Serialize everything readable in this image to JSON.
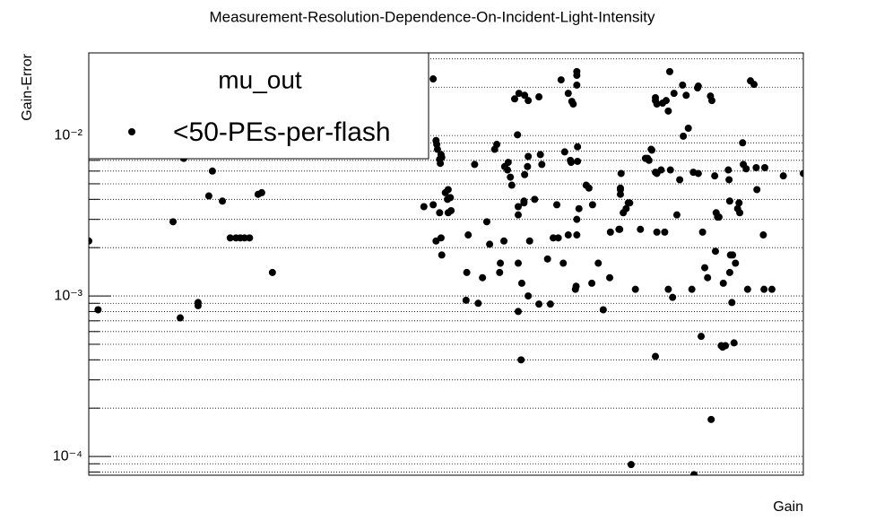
{
  "chart_data": {
    "type": "scatter",
    "title": "Measurement-Resolution-Dependence-On-Incident-Light-Intensity",
    "xlabel": "Gain",
    "ylabel": "Gain-Error",
    "legend_title": "mu_out",
    "legend": "upper left",
    "ylog": true,
    "grid": true,
    "xlim": [
      0,
      100
    ],
    "ylim": [
      7.64e-05,
      0.0327
    ],
    "yticks": [
      {
        "value": 0.0001,
        "label": "10⁻⁴"
      },
      {
        "value": 0.001,
        "label": "10⁻³"
      },
      {
        "value": 0.01,
        "label": "10⁻²"
      }
    ],
    "yminorticks": [
      8e-05,
      9e-05,
      0.0002,
      0.0003,
      0.0004,
      0.0005,
      0.0006,
      0.0007,
      0.0008,
      0.0009,
      0.002,
      0.003,
      0.004,
      0.005,
      0.006,
      0.007,
      0.008,
      0.009,
      0.02,
      0.03
    ],
    "series": [
      {
        "name": "<50-PEs-per-flash",
        "color": "#000000",
        "x": [
          0.0,
          1.3,
          11.8,
          12.8,
          13.3,
          15.3,
          15.3,
          16.8,
          17.3,
          18.7,
          19.8,
          20.6,
          21.2,
          21.8,
          22.5,
          23.7,
          24.2,
          25.7,
          48.2,
          48.6,
          48.7,
          48.8,
          49.1,
          49.2,
          49.3,
          49.4,
          46.9,
          48.2,
          48.6,
          49.1,
          49.3,
          49.4,
          49.9,
          50.3,
          50.3,
          50.7,
          50.2,
          50.6,
          52.8,
          53.1,
          52.9,
          54.0,
          54.5,
          55.1,
          55.7,
          56.1,
          56.8,
          57.1,
          57.5,
          57.6,
          58.1,
          58.2,
          58.6,
          58.7,
          59.0,
          59.2,
          59.6,
          60.0,
          60.1,
          60.1,
          60.1,
          60.1,
          60.5,
          60.2,
          61.0,
          61.5,
          60.6,
          60.9,
          60.9,
          61.0,
          61.5,
          61.4,
          61.5,
          61.7,
          62.4,
          63.0,
          63.4,
          63.2,
          63.0,
          64.2,
          64.6,
          65.0,
          65.5,
          65.7,
          66.1,
          66.4,
          66.6,
          67.1,
          67.4,
          67.5,
          67.1,
          67.6,
          67.8,
          68.1,
          68.2,
          68.3,
          68.3,
          68.3,
          68.4,
          68.4,
          68.3,
          68.3,
          68.6,
          69.6,
          70.0,
          70.5,
          70.4,
          71.3,
          72.0,
          72.9,
          73.0,
          74.2,
          74.4,
          74.4,
          74.4,
          74.5,
          74.3,
          74.8,
          75.2,
          75.5,
          75.7,
          75.9,
          76.5,
          77.2,
          77.9,
          78.2,
          78.4,
          78.7,
          78.8,
          79.3,
          79.5,
          79.3,
          79.5,
          79.3,
          79.5,
          80.1,
          79.3,
          80.3,
          80.6,
          80.8,
          81.1,
          81.1,
          81.3,
          81.4,
          81.7,
          81.9,
          82.3,
          82.7,
          83.1,
          83.2,
          83.6,
          83.9,
          84.4,
          84.6,
          84.7,
          85.2,
          85.3,
          85.3,
          85.7,
          85.9,
          86.2,
          86.6,
          87.0,
          87.1,
          87.2,
          87.6,
          87.7,
          87.8,
          88.0,
          88.2,
          88.5,
          88.7,
          88.8,
          89.1,
          89.6,
          89.5,
          89.7,
          89.7,
          89.8,
          90.0,
          90.1,
          90.3,
          90.5,
          90.8,
          91.0,
          91.1,
          91.5,
          91.6,
          92.0,
          92.2,
          92.6,
          93.1,
          93.4,
          93.5,
          94.4,
          94.5,
          94.6,
          95.6,
          97.2,
          100.0
        ],
        "values": [
          0.0022,
          0.00082,
          0.0029,
          0.00073,
          0.0072,
          0.00091,
          0.00087,
          0.0042,
          0.006,
          0.0039,
          0.0023,
          0.0023,
          0.0023,
          0.0023,
          0.0023,
          0.0043,
          0.0044,
          0.0014,
          0.0225,
          0.0093,
          0.0088,
          0.0082,
          0.0071,
          0.0067,
          0.0076,
          0.0073,
          0.0036,
          0.0037,
          0.0022,
          0.0033,
          0.0023,
          0.0018,
          0.0044,
          0.0046,
          0.0033,
          0.0034,
          0.004,
          0.0041,
          0.00094,
          0.0024,
          0.0014,
          0.0066,
          0.0009,
          0.0013,
          0.0029,
          0.0021,
          0.0082,
          0.0088,
          0.0014,
          0.0016,
          0.0022,
          0.0064,
          0.0061,
          0.0068,
          0.0055,
          0.0049,
          0.0169,
          0.0101,
          0.0032,
          0.0036,
          0.0008,
          0.0016,
          0.0004,
          0.0183,
          0.0178,
          0.0165,
          0.0012,
          0.0039,
          0.0038,
          0.0057,
          0.001,
          0.0064,
          0.0074,
          0.0022,
          0.004,
          0.0174,
          0.0066,
          0.0076,
          0.00089,
          0.0017,
          0.00089,
          0.0023,
          0.0037,
          0.0023,
          0.0222,
          0.0016,
          0.0079,
          0.0024,
          0.007,
          0.0068,
          0.0183,
          0.0163,
          0.0157,
          0.0011,
          0.00115,
          0.025,
          0.0237,
          0.0206,
          0.0069,
          0.0085,
          0.0024,
          0.003,
          0.0035,
          0.0049,
          0.0047,
          0.0037,
          0.0012,
          0.0016,
          0.00082,
          0.0013,
          0.0025,
          0.0026,
          0.0043,
          0.0047,
          0.0046,
          0.0058,
          0.0026,
          0.0033,
          0.0035,
          0.0038,
          0.0038,
          8.9e-05,
          0.0011,
          0.0026,
          0.0072,
          0.0072,
          0.007,
          0.0082,
          0.0081,
          0.0059,
          0.0058,
          0.0165,
          0.0157,
          0.0172,
          0.0025,
          0.0061,
          0.00042,
          0.0159,
          0.0025,
          0.0165,
          0.0142,
          0.0011,
          0.025,
          0.0061,
          0.00098,
          0.0183,
          0.0032,
          0.0053,
          0.0206,
          0.0099,
          0.0178,
          0.0111,
          0.0011,
          0.0059,
          7.7e-05,
          0.0198,
          0.0203,
          0.0058,
          0.00056,
          0.0025,
          0.0015,
          0.0013,
          0.0176,
          0.00017,
          0.0165,
          0.0056,
          0.0019,
          0.0033,
          0.0031,
          0.0031,
          0.00049,
          0.00048,
          0.0012,
          0.00049,
          0.0053,
          0.0061,
          0.0014,
          0.0039,
          0.0018,
          0.00091,
          0.0018,
          0.00051,
          0.0016,
          0.0035,
          0.0038,
          0.0033,
          0.009,
          0.0066,
          0.0062,
          0.0011,
          0.0219,
          0.0208,
          0.0063,
          0.0046,
          0.0024,
          0.0011,
          0.0063,
          0.0011,
          0.0056,
          0.0058
        ]
      }
    ]
  }
}
